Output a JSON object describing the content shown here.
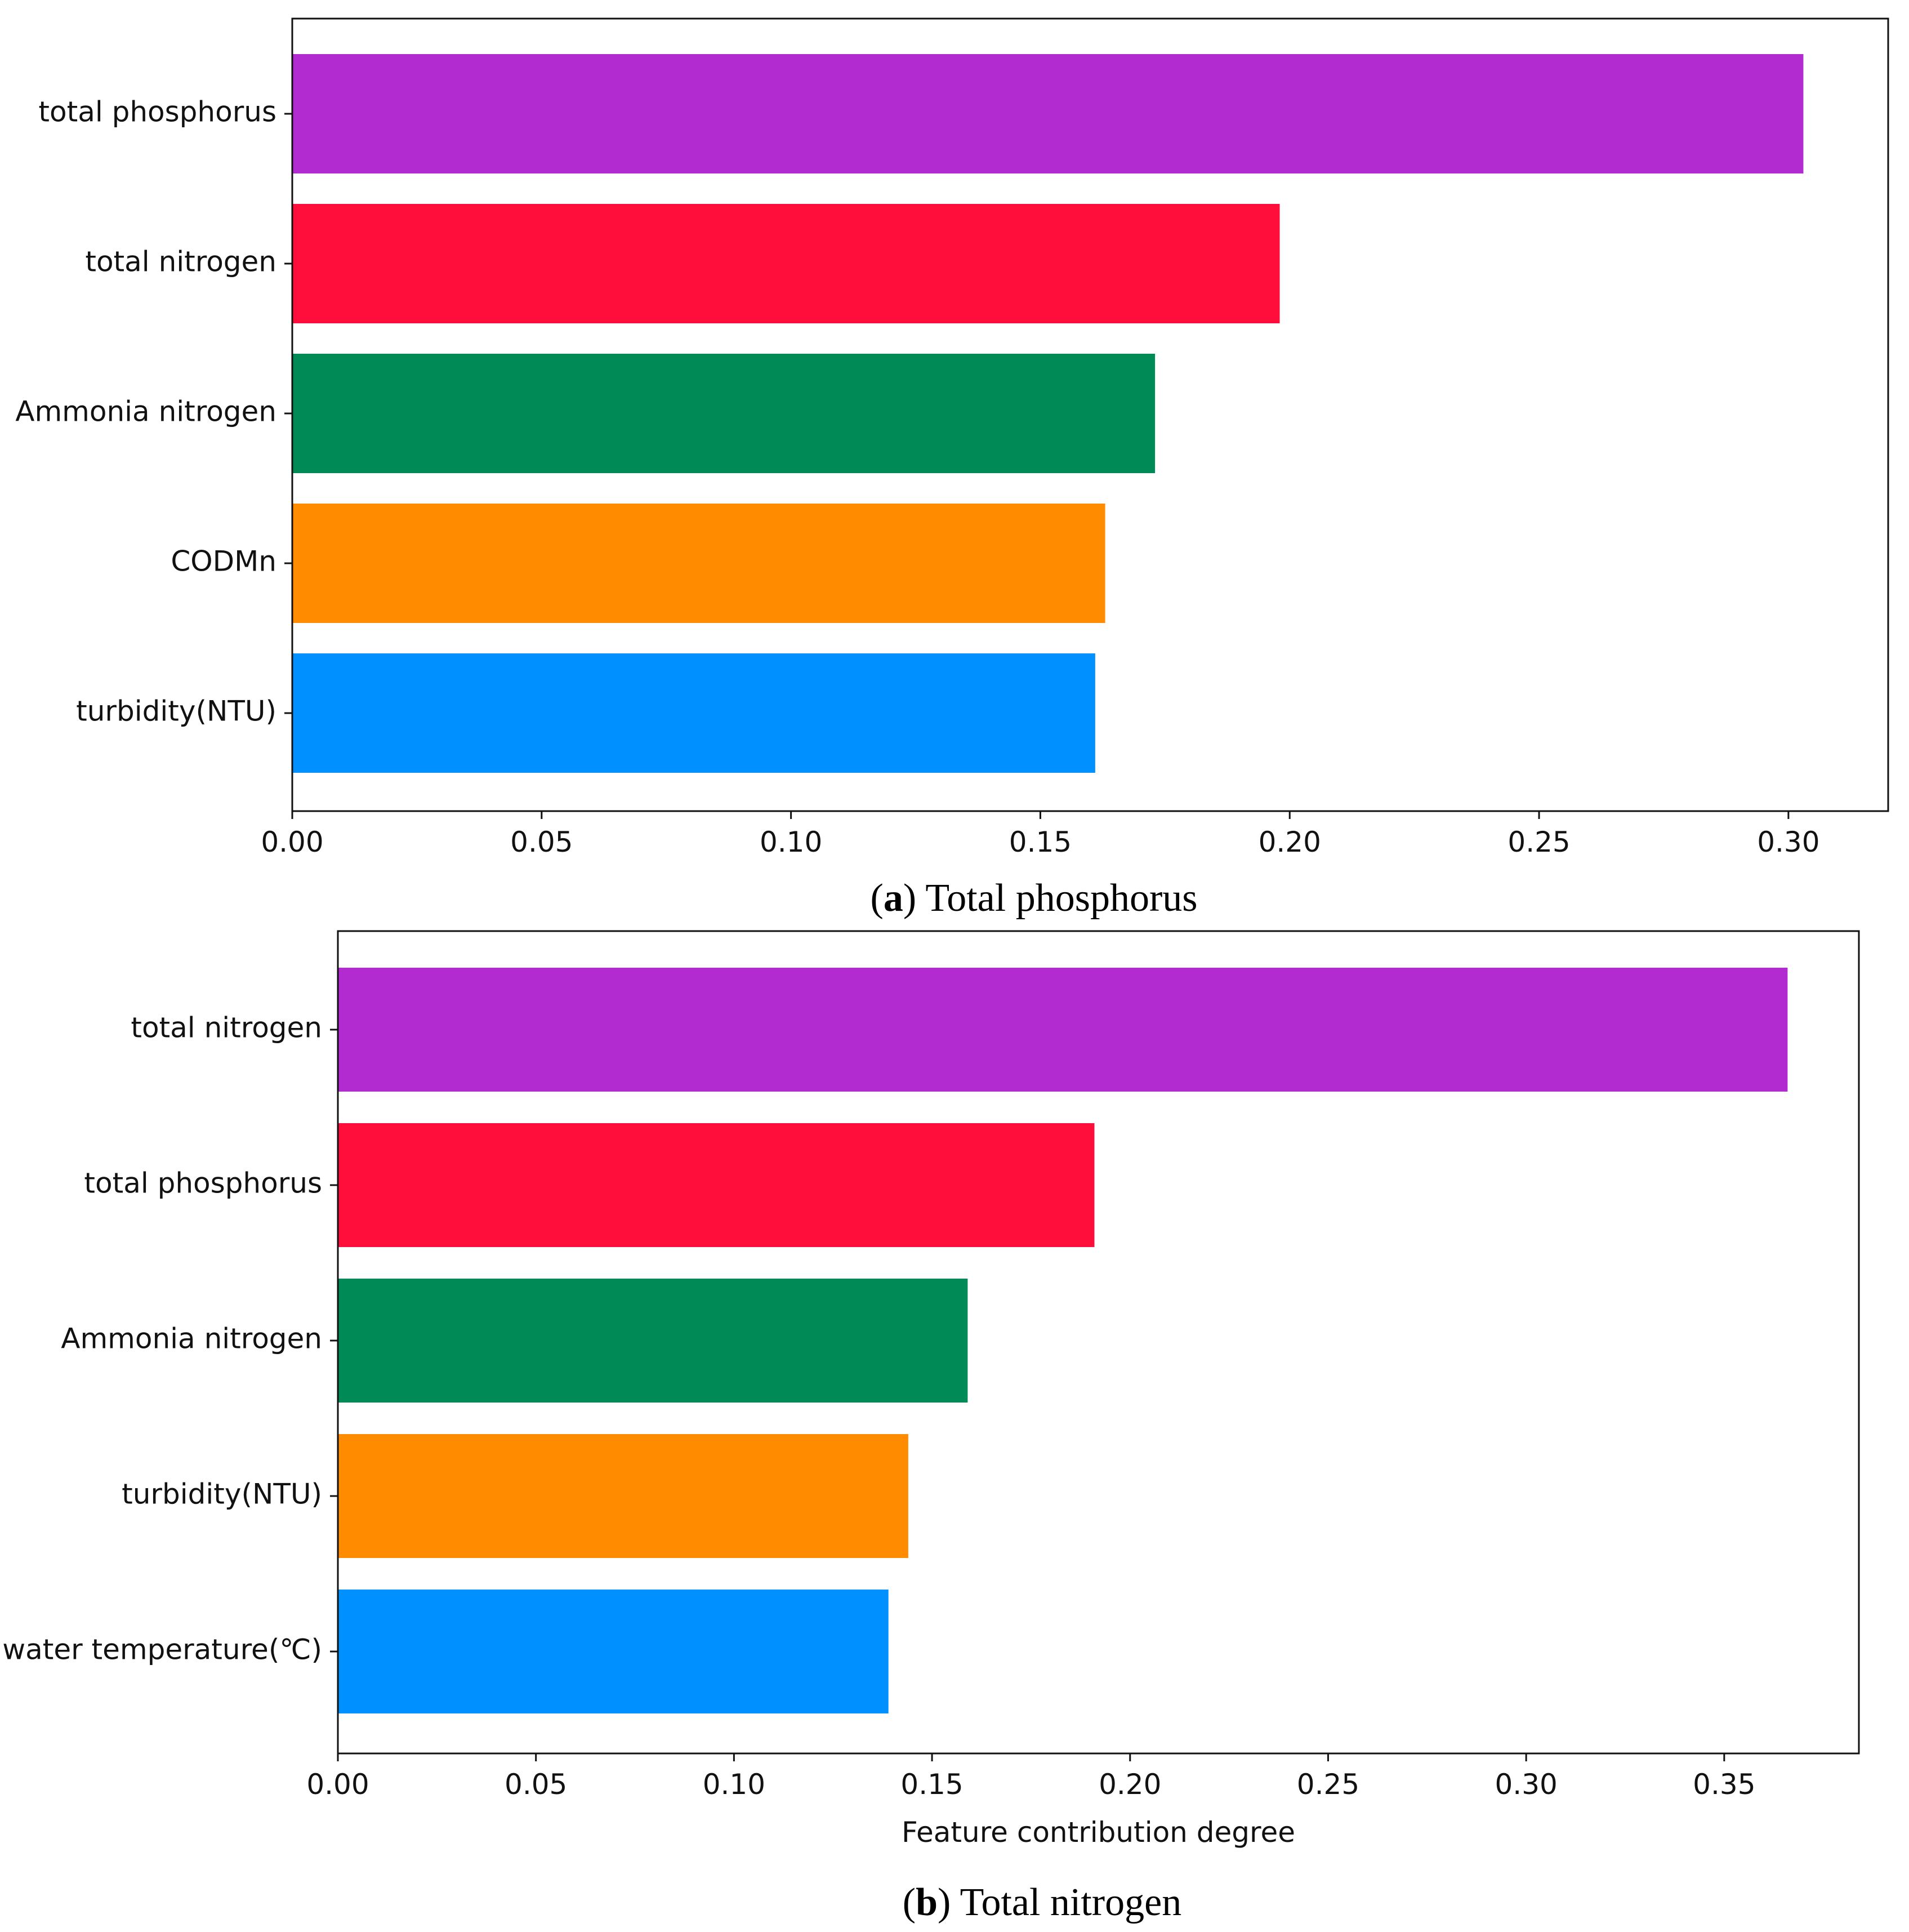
{
  "chart_data": [
    {
      "type": "bar",
      "orientation": "horizontal",
      "caption_letter": "a",
      "caption_title": "Total phosphorus",
      "title": "",
      "xlabel": "",
      "ylabel": "",
      "xlim": [
        0,
        0.32
      ],
      "xticks": [
        0.0,
        0.05,
        0.1,
        0.15,
        0.2,
        0.25,
        0.3
      ],
      "xtick_labels": [
        "0.00",
        "0.05",
        "0.10",
        "0.15",
        "0.20",
        "0.25",
        "0.30"
      ],
      "grid": false,
      "categories": [
        "total phosphorus",
        "total nitrogen",
        "Ammonia nitrogen",
        "CODMn",
        "turbidity(NTU)"
      ],
      "values": [
        0.303,
        0.198,
        0.173,
        0.163,
        0.161
      ],
      "colors": [
        "#b12bd1",
        "#ff0d3b",
        "#008a55",
        "#ff8c00",
        "#0090ff"
      ]
    },
    {
      "type": "bar",
      "orientation": "horizontal",
      "caption_letter": "b",
      "caption_title": "Total nitrogen",
      "title": "",
      "xlabel": "Feature contribution degree",
      "ylabel": "",
      "xlim": [
        0,
        0.384
      ],
      "xticks": [
        0.0,
        0.05,
        0.1,
        0.15,
        0.2,
        0.25,
        0.3,
        0.35
      ],
      "xtick_labels": [
        "0.00",
        "0.05",
        "0.10",
        "0.15",
        "0.20",
        "0.25",
        "0.30",
        "0.35"
      ],
      "grid": false,
      "categories": [
        "total nitrogen",
        "total phosphorus",
        "Ammonia nitrogen",
        "turbidity(NTU)",
        "water temperature(℃)"
      ],
      "values": [
        0.366,
        0.191,
        0.159,
        0.144,
        0.139
      ],
      "colors": [
        "#b12bd1",
        "#ff0d3b",
        "#008a55",
        "#ff8c00",
        "#0090ff"
      ]
    }
  ]
}
